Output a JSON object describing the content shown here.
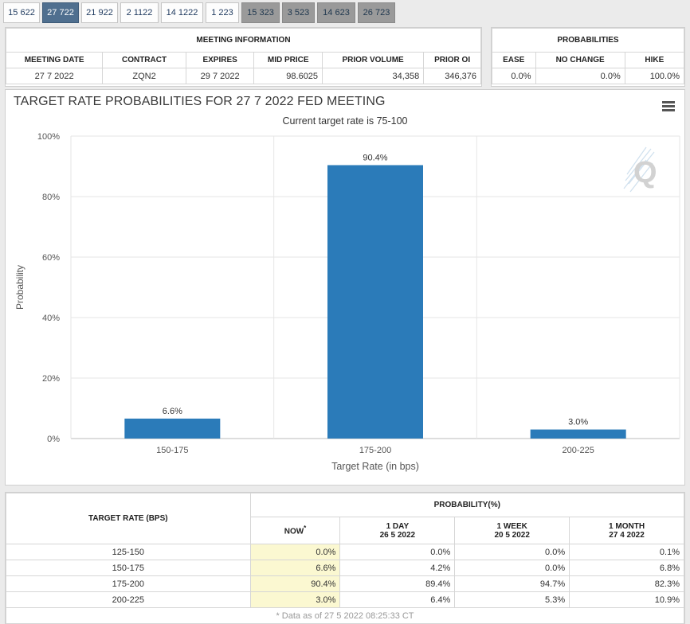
{
  "tabs": [
    {
      "label": "15 622",
      "state": "normal"
    },
    {
      "label": "27 722",
      "state": "active"
    },
    {
      "label": "21 922",
      "state": "normal"
    },
    {
      "label": "2 1122",
      "state": "normal"
    },
    {
      "label": "14 1222",
      "state": "normal"
    },
    {
      "label": "1 223",
      "state": "normal"
    },
    {
      "label": "15 323",
      "state": "gray"
    },
    {
      "label": "3 523",
      "state": "gray"
    },
    {
      "label": "14 623",
      "state": "gray"
    },
    {
      "label": "26 723",
      "state": "gray"
    }
  ],
  "meeting_info": {
    "title": "MEETING INFORMATION",
    "headers": {
      "meeting_date": "MEETING DATE",
      "contract": "CONTRACT",
      "expires": "EXPIRES",
      "mid_price": "MID PRICE",
      "prior_volume": "PRIOR VOLUME",
      "prior_oi": "PRIOR OI"
    },
    "values": {
      "meeting_date": "27 7 2022",
      "contract": "ZQN2",
      "expires": "29 7 2022",
      "mid_price": "98.6025",
      "prior_volume": "34,358",
      "prior_oi": "346,376"
    }
  },
  "probabilities": {
    "title": "PROBABILITIES",
    "headers": {
      "ease": "EASE",
      "no_change": "NO CHANGE",
      "hike": "HIKE"
    },
    "values": {
      "ease": "0.0%",
      "no_change": "0.0%",
      "hike": "100.0%"
    }
  },
  "chart": {
    "title": "TARGET RATE PROBABILITIES FOR 27 7 2022 FED MEETING",
    "subtitle": "Current target rate is 75-100",
    "logo_letter": "Q"
  },
  "chart_data": {
    "type": "bar",
    "title": "TARGET RATE PROBABILITIES FOR 27 7 2022 FED MEETING",
    "subtitle": "Current target rate is 75-100",
    "categories": [
      "150-175",
      "175-200",
      "200-225"
    ],
    "values": [
      6.6,
      90.4,
      3.0
    ],
    "data_labels": [
      "6.6%",
      "90.4%",
      "3.0%"
    ],
    "xlabel": "Target Rate (in bps)",
    "ylabel": "Probability",
    "ylim": [
      0,
      100
    ],
    "yticks": [
      0,
      20,
      40,
      60,
      80,
      100
    ],
    "ytick_labels": [
      "0%",
      "20%",
      "40%",
      "60%",
      "80%",
      "100%"
    ],
    "bar_color": "#2b7bb9",
    "grid": true
  },
  "bottom_table": {
    "target_rate_header": "TARGET RATE (BPS)",
    "probability_header": "PROBABILITY(%)",
    "col_now": "NOW",
    "col_now_mark": "*",
    "col_1day": "1 DAY",
    "col_1day_date": "26 5 2022",
    "col_1week": "1 WEEK",
    "col_1week_date": "20 5 2022",
    "col_1month": "1 MONTH",
    "col_1month_date": "27 4 2022",
    "rows": [
      {
        "rate": "125-150",
        "now": "0.0%",
        "day": "0.0%",
        "week": "0.0%",
        "month": "0.1%"
      },
      {
        "rate": "150-175",
        "now": "6.6%",
        "day": "4.2%",
        "week": "0.0%",
        "month": "6.8%"
      },
      {
        "rate": "175-200",
        "now": "90.4%",
        "day": "89.4%",
        "week": "94.7%",
        "month": "82.3%"
      },
      {
        "rate": "200-225",
        "now": "3.0%",
        "day": "6.4%",
        "week": "5.3%",
        "month": "10.9%"
      }
    ],
    "footnote": "* Data as of 27 5 2022 08:25:33 CT"
  }
}
